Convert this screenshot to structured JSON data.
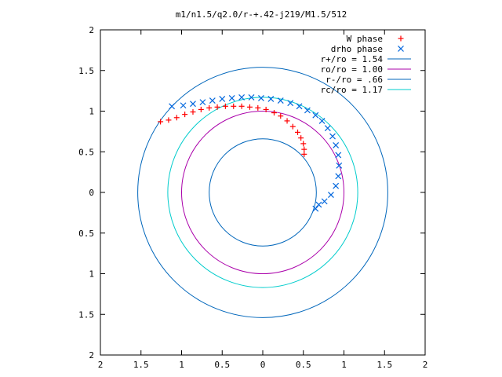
{
  "chart_data": {
    "type": "scatter",
    "title": "m1/n1.5/q2.0/r-+.42-j219/M1.5/512",
    "xlabel": "",
    "ylabel": "",
    "xlim": [
      -2,
      2
    ],
    "ylim": [
      -2,
      2
    ],
    "x_ticks": [
      -2,
      -1.5,
      -1,
      -0.5,
      0,
      0.5,
      1,
      1.5,
      2
    ],
    "y_ticks": [
      -2,
      -1.5,
      -1,
      -0.5,
      0,
      0.5,
      1,
      1.5,
      2
    ],
    "x_tick_labels": [
      "2",
      "1.5",
      "1",
      "0.5",
      "0",
      "0.5",
      "1",
      "1.5",
      "2"
    ],
    "y_tick_labels": [
      "2",
      "1.5",
      "1",
      "0.5",
      "0",
      "0.5",
      "1",
      "1.5",
      "2"
    ],
    "grid": false,
    "legend_position": "top-right",
    "series": [
      {
        "name": "W phase",
        "kind": "points",
        "marker": "plus",
        "color": "#ff0000",
        "x": [
          -1.26,
          -1.16,
          -1.06,
          -0.96,
          -0.86,
          -0.76,
          -0.66,
          -0.56,
          -0.46,
          -0.36,
          -0.26,
          -0.16,
          -0.06,
          0.04,
          0.14,
          0.22,
          0.3,
          0.37,
          0.43,
          0.47,
          0.5,
          0.51,
          0.51
        ],
        "y": [
          0.87,
          0.89,
          0.92,
          0.96,
          0.99,
          1.02,
          1.04,
          1.05,
          1.06,
          1.06,
          1.06,
          1.05,
          1.04,
          1.02,
          0.98,
          0.94,
          0.88,
          0.81,
          0.74,
          0.67,
          0.6,
          0.53,
          0.47
        ]
      },
      {
        "name": "drho phase",
        "kind": "points",
        "marker": "cross",
        "color": "#0066dd",
        "x": [
          -1.12,
          -0.98,
          -0.86,
          -0.74,
          -0.62,
          -0.5,
          -0.38,
          -0.26,
          -0.14,
          -0.02,
          0.1,
          0.22,
          0.34,
          0.45,
          0.55,
          0.65,
          0.73,
          0.8,
          0.86,
          0.9,
          0.93,
          0.94,
          0.93,
          0.9,
          0.84,
          0.76,
          0.69,
          0.65
        ],
        "y": [
          1.06,
          1.07,
          1.09,
          1.11,
          1.13,
          1.15,
          1.16,
          1.17,
          1.17,
          1.16,
          1.15,
          1.13,
          1.1,
          1.06,
          1.01,
          0.95,
          0.88,
          0.79,
          0.69,
          0.58,
          0.46,
          0.33,
          0.2,
          0.08,
          -0.03,
          -0.11,
          -0.15,
          -0.2
        ]
      },
      {
        "name": "r+/ro = 1.54",
        "kind": "circle",
        "radius": 1.54,
        "color": "#0066bb"
      },
      {
        "name": "ro/ro = 1.00",
        "kind": "circle",
        "radius": 1.0,
        "color": "#aa00aa"
      },
      {
        "name": "r-/ro = .66",
        "kind": "circle",
        "radius": 0.66,
        "color": "#0066bb"
      },
      {
        "name": "rc/ro = 1.17",
        "kind": "circle",
        "radius": 1.17,
        "color": "#00cccc"
      }
    ]
  }
}
